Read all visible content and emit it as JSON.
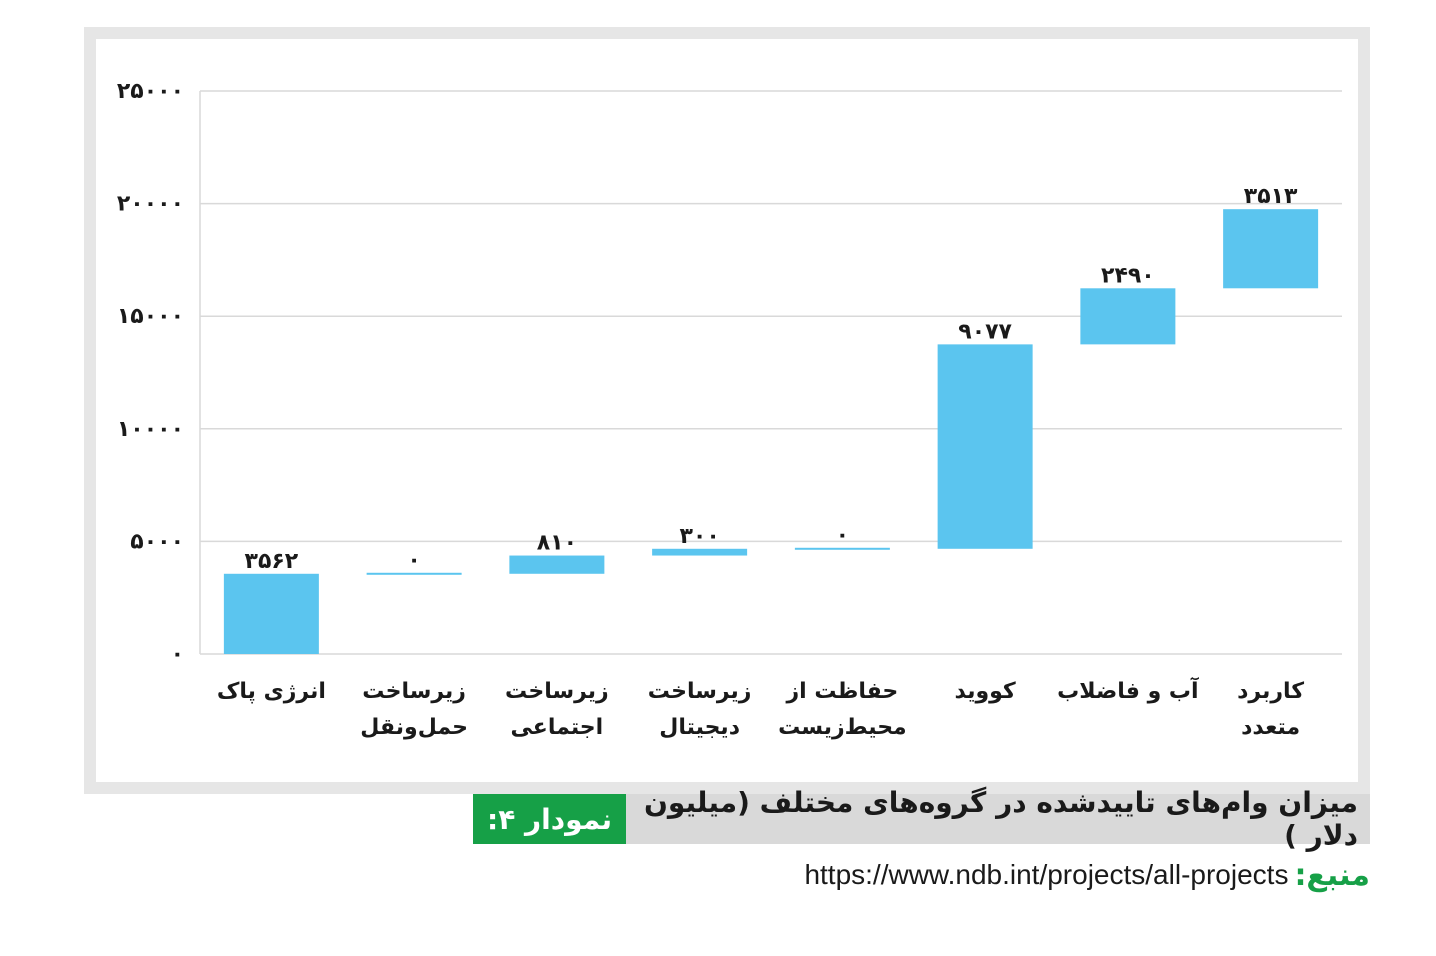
{
  "caption": {
    "label": "نمودار ۴:",
    "title": "میزان وام‌های تاییدشده در گروه‌های مختلف (میلیون دلار )"
  },
  "source": {
    "label": "منبع:",
    "url": "https://www.ndb.int/projects/all-projects"
  },
  "chart_data": {
    "type": "bar",
    "subtype": "waterfall",
    "categories": [
      [
        "انرژی پاک"
      ],
      [
        "زیرساخت",
        "حمل‌ونقل"
      ],
      [
        "زیرساخت",
        "اجتماعی"
      ],
      [
        "زیرساخت",
        "دیجیتال"
      ],
      [
        "حفاظت از",
        "محیط‌زیست"
      ],
      [
        "کووید"
      ],
      [
        "آب و فاضلاب"
      ],
      [
        "کاربرد",
        "متعدد"
      ]
    ],
    "values": [
      3562,
      0,
      810,
      300,
      0,
      9077,
      2490,
      3513
    ],
    "value_labels": [
      "۳۵۶۲",
      "۰",
      "۸۱۰",
      "۳۰۰",
      "۰",
      "۹۰۷۷",
      "۲۴۹۰",
      "۳۵۱۳"
    ],
    "ylim": [
      0,
      25000
    ],
    "yticks": [
      0,
      5000,
      10000,
      15000,
      20000,
      25000
    ],
    "ytick_labels": [
      "۰",
      "۵۰۰۰",
      "۱۰۰۰۰",
      "۱۵۰۰۰",
      "۲۰۰۰۰",
      "۲۵۰۰۰"
    ],
    "grid": true,
    "bar_color": "#5bc5ef",
    "grid_color": "#d9d9d9",
    "accent_color": "#16a047"
  }
}
